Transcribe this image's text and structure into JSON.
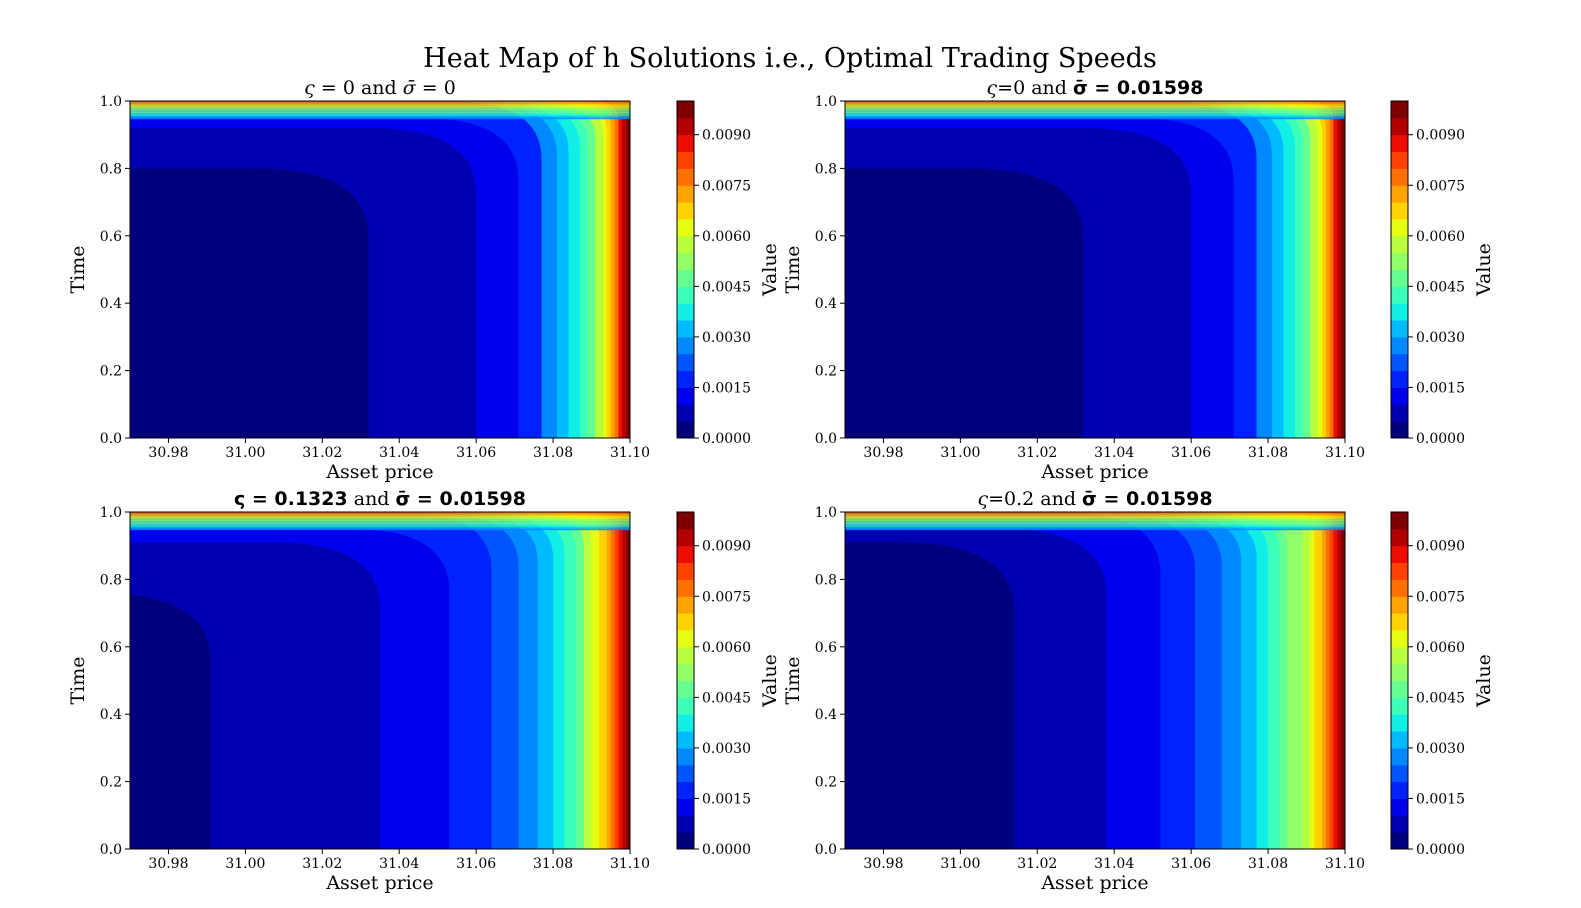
{
  "figure": {
    "title": "Heat Map of h Solutions i.e., Optimal Trading Speeds"
  },
  "chart_data": [
    {
      "type": "heatmap",
      "title_parts": [
        {
          "text": "ς",
          "style": "italic"
        },
        {
          "text": " = 0 and ",
          "style": "normal"
        },
        {
          "text": "σ̄",
          "style": "italic"
        },
        {
          "text": " = 0",
          "style": "normal"
        }
      ],
      "xlabel": "Asset price",
      "ylabel": "Time",
      "colorbar_label": "Value",
      "xlim": [
        30.97,
        31.1
      ],
      "ylim": [
        0.0,
        1.0
      ],
      "xticks": [
        "30.98",
        "31.00",
        "31.02",
        "31.04",
        "31.06",
        "31.08",
        "31.10"
      ],
      "yticks": [
        "0.0",
        "0.2",
        "0.4",
        "0.6",
        "0.8",
        "1.0"
      ],
      "colorbar_ticks": [
        "0.0000",
        "0.0015",
        "0.0030",
        "0.0045",
        "0.0060",
        "0.0075",
        "0.0090"
      ],
      "value_range": [
        0.0,
        0.01
      ],
      "vertical_contour_x": [
        31.032,
        31.06,
        31.071,
        31.077,
        31.081,
        31.084,
        31.087,
        31.089,
        31.091,
        31.093,
        31.094,
        31.095,
        31.096,
        31.097,
        31.098,
        31.099
      ],
      "plateau_time": [
        0.8,
        0.92,
        0.95
      ]
    },
    {
      "type": "heatmap",
      "title_parts": [
        {
          "text": "ς",
          "style": "italic"
        },
        {
          "text": "=0 and ",
          "style": "normal"
        },
        {
          "text": "σ̄ = 0.01598",
          "style": "bold"
        }
      ],
      "xlabel": "Asset price",
      "ylabel": "Time",
      "colorbar_label": "Value",
      "xlim": [
        30.97,
        31.1
      ],
      "ylim": [
        0.0,
        1.0
      ],
      "xticks": [
        "30.98",
        "31.00",
        "31.02",
        "31.04",
        "31.06",
        "31.08",
        "31.10"
      ],
      "yticks": [
        "0.0",
        "0.2",
        "0.4",
        "0.6",
        "0.8",
        "1.0"
      ],
      "colorbar_ticks": [
        "0.0000",
        "0.0015",
        "0.0030",
        "0.0045",
        "0.0060",
        "0.0075",
        "0.0090"
      ],
      "value_range": [
        0.0,
        0.01
      ],
      "vertical_contour_x": [
        31.032,
        31.06,
        31.071,
        31.077,
        31.081,
        31.084,
        31.087,
        31.089,
        31.091,
        31.093,
        31.094,
        31.095,
        31.096,
        31.097,
        31.098,
        31.099
      ],
      "plateau_time": [
        0.8,
        0.92,
        0.95
      ]
    },
    {
      "type": "heatmap",
      "title_parts": [
        {
          "text": "ς = 0.1323",
          "style": "bold"
        },
        {
          "text": " and ",
          "style": "normal"
        },
        {
          "text": "σ̄ = 0.01598",
          "style": "bold"
        }
      ],
      "xlabel": "Asset price",
      "ylabel": "Time",
      "colorbar_label": "Value",
      "xlim": [
        30.97,
        31.1
      ],
      "ylim": [
        0.0,
        1.0
      ],
      "xticks": [
        "30.98",
        "31.00",
        "31.02",
        "31.04",
        "31.06",
        "31.08",
        "31.10"
      ],
      "yticks": [
        "0.0",
        "0.2",
        "0.4",
        "0.6",
        "0.8",
        "1.0"
      ],
      "colorbar_ticks": [
        "0.0000",
        "0.0015",
        "0.0030",
        "0.0045",
        "0.0060",
        "0.0075",
        "0.0090"
      ],
      "value_range": [
        0.0,
        0.01
      ],
      "vertical_contour_x": [
        30.991,
        31.035,
        31.053,
        31.064,
        31.071,
        31.076,
        31.08,
        31.083,
        31.086,
        31.088,
        31.09,
        31.092,
        31.094,
        31.095,
        31.096,
        31.097,
        31.098,
        31.099
      ],
      "plateau_time": [
        0.76,
        0.91,
        0.95
      ]
    },
    {
      "type": "heatmap",
      "title_parts": [
        {
          "text": "ς",
          "style": "italic"
        },
        {
          "text": "=0.2 and ",
          "style": "normal"
        },
        {
          "text": "σ̄ = 0.01598",
          "style": "bold"
        }
      ],
      "xlabel": "Asset price",
      "ylabel": "Time",
      "colorbar_label": "Value",
      "xlim": [
        30.97,
        31.1
      ],
      "ylim": [
        0.0,
        1.0
      ],
      "xticks": [
        "30.98",
        "31.00",
        "31.02",
        "31.04",
        "31.06",
        "31.08",
        "31.10"
      ],
      "yticks": [
        "0.0",
        "0.2",
        "0.4",
        "0.6",
        "0.8",
        "1.0"
      ],
      "colorbar_ticks": [
        "0.0000",
        "0.0015",
        "0.0030",
        "0.0045",
        "0.0060",
        "0.0075",
        "0.0090"
      ],
      "value_range": [
        0.0,
        0.01
      ],
      "vertical_contour_x": [
        31.014,
        31.038,
        31.052,
        31.061,
        31.068,
        31.073,
        31.077,
        31.08,
        31.083,
        31.085,
        31.087,
        31.089,
        31.091,
        31.092,
        31.094,
        31.095,
        31.096,
        31.097,
        31.098,
        31.099
      ],
      "plateau_time": [
        0.91,
        0.95
      ]
    }
  ],
  "colormap": [
    "#00007f",
    "#0000b2",
    "#0000ed",
    "#0022ff",
    "#0055ff",
    "#0088ff",
    "#00bbff",
    "#10eee6",
    "#3cffba",
    "#65ff91",
    "#91ff65",
    "#baff3c",
    "#e6ff10",
    "#ffd200",
    "#ffa300",
    "#ff7000",
    "#ff4100",
    "#ed0d00",
    "#b20000",
    "#7f0000"
  ]
}
